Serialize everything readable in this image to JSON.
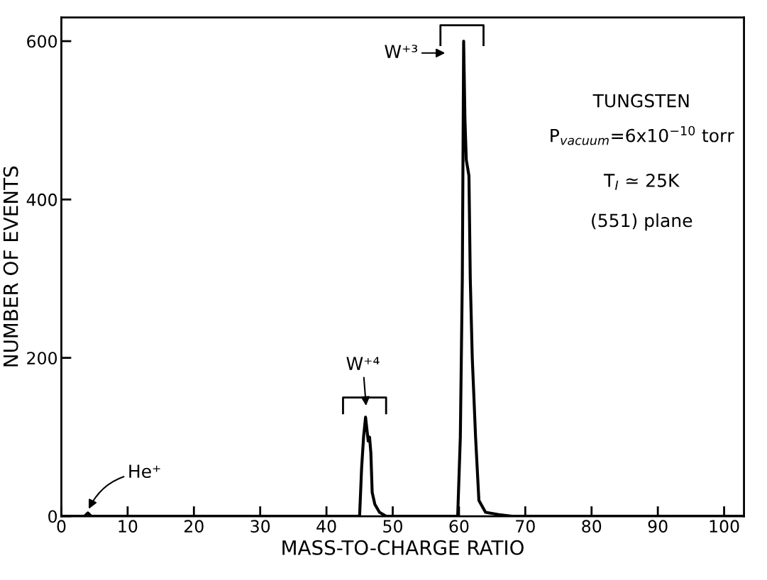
{
  "chart_data": {
    "type": "line",
    "xlabel": "MASS-TO-CHARGE RATIO",
    "ylabel": "NUMBER OF EVENTS",
    "series": [
      {
        "color": "#000000",
        "x": [
          0,
          3.5,
          4,
          4.5,
          45,
          45.3,
          45.6,
          45.9,
          46.1,
          46.3,
          46.5,
          46.7,
          46.9,
          47.3,
          48,
          49,
          59.8,
          60.2,
          60.5,
          60.7,
          60.9,
          61.1,
          61.3,
          61.5,
          61.7,
          62,
          62.5,
          63,
          64,
          66,
          68,
          103
        ],
        "values": [
          0,
          0,
          4,
          0,
          0,
          60,
          100,
          125,
          110,
          95,
          100,
          80,
          30,
          15,
          5,
          0,
          0,
          100,
          300,
          600,
          500,
          450,
          440,
          430,
          300,
          200,
          100,
          20,
          5,
          2,
          0,
          0
        ]
      }
    ],
    "xlim": [
      0,
      103
    ],
    "ylim": [
      0,
      630
    ],
    "xticks": [
      0,
      10,
      20,
      30,
      40,
      50,
      60,
      70,
      80,
      90,
      100
    ],
    "yticks": [
      0,
      200,
      400,
      600
    ],
    "grid": false,
    "legend": false,
    "marker": "none",
    "line_style": "solid",
    "annotations": [
      {
        "text": "He⁺",
        "x": 4,
        "y": 4
      },
      {
        "text": "W⁺⁴",
        "x": 46,
        "y": 125
      },
      {
        "text": "W⁺³",
        "x": 60.7,
        "y": 600
      },
      "TUNGSTEN",
      "P$_{vacuum}$=6x10$^{−10}$ torr",
      "T$_{I}$ ≃ 25K",
      "(551) plane"
    ]
  }
}
